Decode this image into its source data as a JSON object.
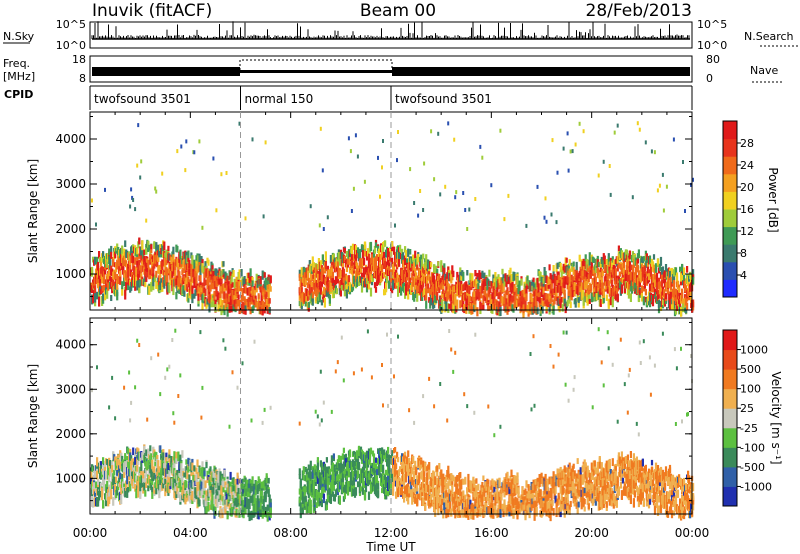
{
  "header": {
    "station": "Inuvik (fitACF)",
    "beam": "Beam 00",
    "date": "28/Feb/2013"
  },
  "strips": {
    "nsky_label": "N.Sky",
    "nsky_ticks": [
      "10^5",
      "10^0"
    ],
    "nsearch_label": "N.Search",
    "nsearch_ticks": [
      "10^5",
      "10^0"
    ],
    "freq_label_1": "Freq.",
    "freq_label_2": "[MHz]",
    "freq_ticks": [
      "18",
      "8"
    ],
    "nave_label": "Nave",
    "nave_ticks": [
      "80",
      "0"
    ],
    "cpid_label": "CPID",
    "cpid_segments": [
      {
        "label": "twofsound 3501",
        "start": 0,
        "end": 6
      },
      {
        "label": "normal 150",
        "start": 6,
        "end": 12
      },
      {
        "label": "twofsound 3501",
        "start": 12,
        "end": 24
      }
    ]
  },
  "chart_data": [
    {
      "type": "heatmap",
      "quantity": "power",
      "ylabel": "Slant Range [km]",
      "xlim": [
        0,
        24
      ],
      "ylim": [
        200,
        4600
      ],
      "y_ticks": [
        1000,
        2000,
        3000,
        4000
      ],
      "colorbar_label": "Power [dB]",
      "colorbar_ticks": [
        "4",
        "8",
        "12",
        "16",
        "20",
        "24",
        "28"
      ],
      "colorbar_colors": [
        "#1f2bff",
        "#2a4fb0",
        "#3a7a6e",
        "#3f9a55",
        "#9fcc3a",
        "#f0d020",
        "#f4a020",
        "#f06a1a",
        "#e8341c",
        "#e01a1a"
      ]
    },
    {
      "type": "heatmap",
      "quantity": "velocity",
      "ylabel": "Slant Range [km]",
      "xlabel": "Time UT",
      "xlim": [
        0,
        24
      ],
      "ylim": [
        200,
        4600
      ],
      "x_ticks": [
        "00:00",
        "04:00",
        "08:00",
        "12:00",
        "16:00",
        "20:00",
        "00:00"
      ],
      "y_ticks": [
        1000,
        2000,
        3000,
        4000
      ],
      "colorbar_label": "Velocity [m s⁻¹]",
      "colorbar_ticks": [
        "1000",
        "500",
        "100",
        "25",
        "-25",
        "-100",
        "-500",
        "-1000"
      ],
      "colorbar_colors": [
        "#2030b0",
        "#3060a8",
        "#3a8a5a",
        "#5cc040",
        "#c8c8bc",
        "#f0b050",
        "#f07a20",
        "#e84a1a",
        "#e01818"
      ]
    }
  ]
}
